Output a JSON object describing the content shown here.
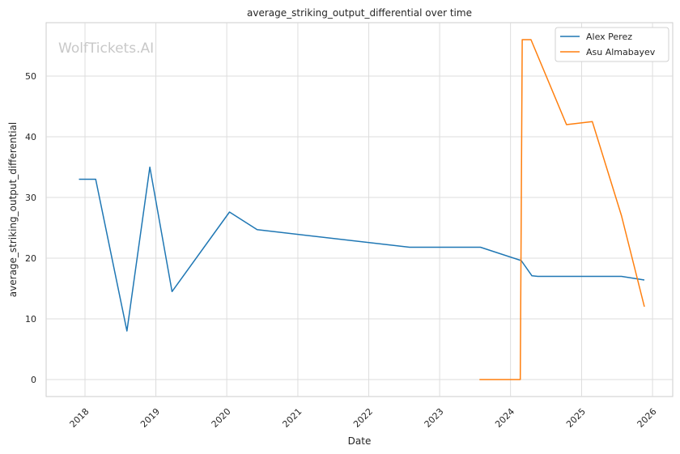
{
  "chart_data": {
    "type": "line",
    "title": "average_striking_output_differential over time",
    "xlabel": "Date",
    "ylabel": "average_striking_output_differential",
    "watermark": "WolfTickets.AI",
    "x_range": [
      "2017-06-15",
      "2026-04-15"
    ],
    "ylim": [
      -2.8,
      58.8
    ],
    "x_ticks": [
      "2018",
      "2019",
      "2020",
      "2021",
      "2022",
      "2023",
      "2024",
      "2025",
      "2026"
    ],
    "y_ticks": [
      0,
      10,
      20,
      30,
      40,
      50
    ],
    "grid": true,
    "legend_position": "top-right",
    "series": [
      {
        "name": "Alex Perez",
        "color": "#1f77b4",
        "points": [
          [
            "2017-12-01",
            33.0
          ],
          [
            "2018-02-25",
            33.0
          ],
          [
            "2018-08-05",
            8.0
          ],
          [
            "2018-12-01",
            35.0
          ],
          [
            "2019-03-25",
            14.5
          ],
          [
            "2020-01-15",
            27.6
          ],
          [
            "2020-06-05",
            24.7
          ],
          [
            "2022-07-30",
            21.8
          ],
          [
            "2023-07-30",
            21.8
          ],
          [
            "2024-02-25",
            19.6
          ],
          [
            "2024-04-20",
            17.1
          ],
          [
            "2024-05-20",
            17.0
          ],
          [
            "2025-07-25",
            17.0
          ],
          [
            "2025-11-20",
            16.4
          ]
        ]
      },
      {
        "name": "Asu Almabayev",
        "color": "#ff7f0e",
        "points": [
          [
            "2023-07-25",
            0.0
          ],
          [
            "2024-02-20",
            0.0
          ],
          [
            "2024-03-01",
            56.0
          ],
          [
            "2024-04-15",
            56.0
          ],
          [
            "2024-10-15",
            42.0
          ],
          [
            "2025-02-25",
            42.5
          ],
          [
            "2025-07-25",
            27.0
          ],
          [
            "2025-11-20",
            12.0
          ]
        ]
      }
    ]
  }
}
